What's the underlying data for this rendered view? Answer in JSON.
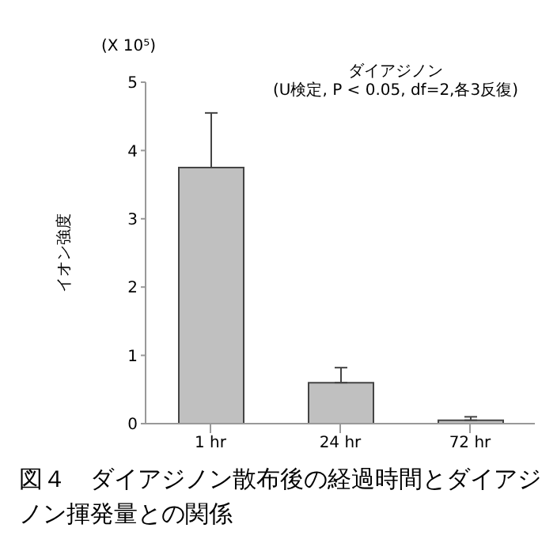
{
  "chart_data": {
    "type": "bar",
    "title": "ダイアジノン",
    "subtitle": "(U検定, P < 0.05, df=2,各3反復)",
    "ylabel": "イオン強度",
    "categories": [
      "1 hr",
      "24 hr",
      "72 hr"
    ],
    "values": [
      3.75,
      0.6,
      0.05
    ],
    "errors": [
      [
        3.75,
        4.55
      ],
      [
        0.6,
        0.82
      ],
      [
        0.05,
        0.1
      ]
    ],
    "color": "#c0c0c0",
    "ylim": [
      0,
      5
    ],
    "yticks": [
      0,
      1,
      2,
      3,
      4,
      5
    ],
    "grid": false,
    "legend": false,
    "annotations": [
      "(X 10⁵)",
      "図４　ダイアジノン散布後の経過時間とダイアジノン揮発量との関係"
    ]
  }
}
